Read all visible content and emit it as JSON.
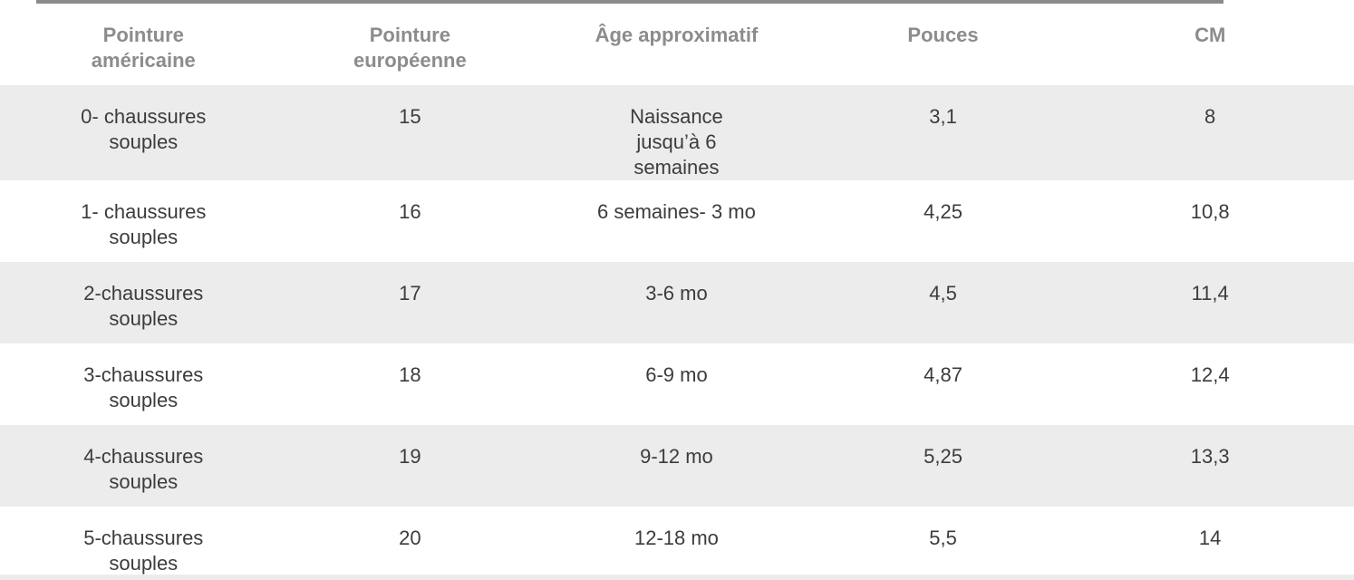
{
  "table": {
    "columns": [
      "Pointure américaine",
      "Pointure européenne",
      "Âge approximatif",
      "Pouces",
      "CM"
    ],
    "rows": [
      [
        "0- chaussures souples",
        "15",
        "Naissance jusqu’à 6 semaines",
        "3,1",
        "8"
      ],
      [
        "1- chaussures souples",
        "16",
        "6 semaines- 3 mo",
        "4,25",
        "10,8"
      ],
      [
        "2-chaussures souples",
        "17",
        "3-6 mo",
        "4,5",
        "11,4"
      ],
      [
        "3-chaussures souples",
        "18",
        "6-9 mo",
        "4,87",
        "12,4"
      ],
      [
        "4-chaussures souples",
        "19",
        "9-12 mo",
        "5,25",
        "13,3"
      ],
      [
        "5-chaussures souples",
        "20",
        "12-18 mo",
        "5,5",
        "14"
      ]
    ]
  }
}
